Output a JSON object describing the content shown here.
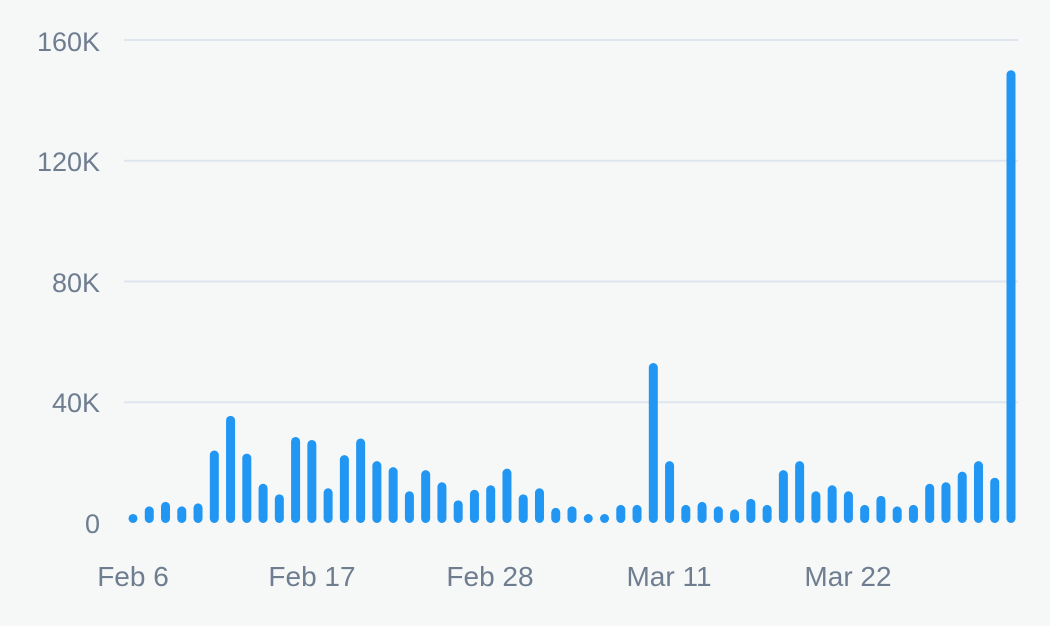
{
  "chart_data": {
    "type": "bar",
    "x_start": "Feb 6",
    "x_tick_labels": [
      "Feb 6",
      "Feb 17",
      "Feb 28",
      "Mar 11",
      "Mar 22"
    ],
    "x_tick_indices": [
      0,
      11,
      22,
      33,
      44
    ],
    "y_tick_values": [
      0,
      40000,
      80000,
      120000,
      160000
    ],
    "y_tick_labels": [
      "0",
      "40K",
      "80K",
      "120K",
      "160K"
    ],
    "ylim": [
      0,
      160000
    ],
    "grid": true,
    "bar_color": "#2196f3",
    "values": [
      3000,
      5500,
      7000,
      5500,
      6500,
      24000,
      35500,
      23000,
      13000,
      9500,
      28500,
      27500,
      11500,
      22500,
      28000,
      20500,
      18500,
      10500,
      17500,
      13500,
      7500,
      11000,
      12500,
      18000,
      9500,
      11500,
      5000,
      5500,
      2500,
      2000,
      6000,
      6000,
      53000,
      20500,
      6000,
      7000,
      5500,
      4500,
      8000,
      6000,
      17500,
      20500,
      10500,
      12500,
      10500,
      6000,
      9000,
      5500,
      6000,
      13000,
      13500,
      17000,
      20500,
      15000,
      150000
    ]
  }
}
